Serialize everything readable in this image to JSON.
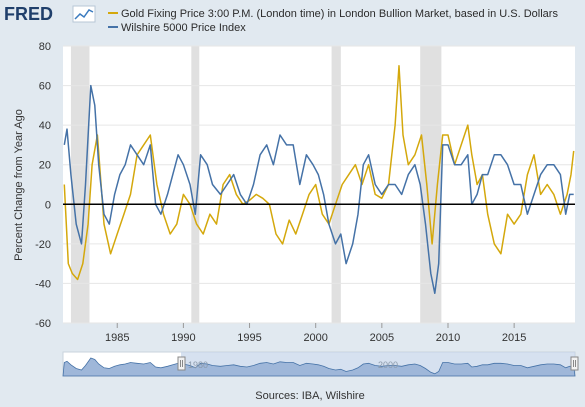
{
  "brand": {
    "logo_text": "FRED"
  },
  "chart_data": {
    "type": "line",
    "title": "",
    "xlabel": "",
    "ylabel": "Percent Change from Year Ago",
    "ylim": [
      -60,
      80
    ],
    "yticks": [
      -60,
      -40,
      -20,
      0,
      20,
      40,
      60,
      80
    ],
    "xlim": [
      1980.9,
      2019.6
    ],
    "xticks": [
      1985,
      1990,
      1995,
      2000,
      2005,
      2010,
      2015
    ],
    "grid": "horizontal",
    "legend_position": "top-left",
    "zero_line": true,
    "recessions": [
      [
        1981.5,
        1982.9
      ],
      [
        1990.6,
        1991.2
      ],
      [
        2001.2,
        2001.9
      ],
      [
        2007.9,
        2009.5
      ]
    ],
    "series": [
      {
        "name": "Gold Fixing Price 3:00 P.M. (London time) in London Bullion Market, based in U.S. Dollars",
        "color": "#d4a80c",
        "x": [
          1981.0,
          1981.3,
          1981.6,
          1982.0,
          1982.4,
          1982.8,
          1983.1,
          1983.5,
          1984.0,
          1984.5,
          1985.0,
          1985.5,
          1986.0,
          1986.5,
          1987.0,
          1987.5,
          1988.0,
          1988.5,
          1989.0,
          1989.5,
          1990.0,
          1990.5,
          1991.0,
          1991.5,
          1992.0,
          1992.5,
          1993.0,
          1993.5,
          1994.0,
          1994.5,
          1995.0,
          1995.5,
          1996.0,
          1996.5,
          1997.0,
          1997.5,
          1998.0,
          1998.5,
          1999.0,
          1999.5,
          2000.0,
          2000.5,
          2001.0,
          2001.5,
          2002.0,
          2002.5,
          2003.0,
          2003.5,
          2004.0,
          2004.5,
          2005.0,
          2005.5,
          2006.0,
          2006.3,
          2006.6,
          2007.0,
          2007.5,
          2008.0,
          2008.4,
          2008.8,
          2009.2,
          2009.6,
          2010.0,
          2010.5,
          2011.0,
          2011.5,
          2011.8,
          2012.2,
          2012.6,
          2013.0,
          2013.5,
          2014.0,
          2014.5,
          2015.0,
          2015.5,
          2016.0,
          2016.5,
          2017.0,
          2017.5,
          2018.0,
          2018.5,
          2019.0,
          2019.3,
          2019.5
        ],
        "values": [
          10,
          -30,
          -35,
          -38,
          -30,
          -10,
          20,
          35,
          -10,
          -25,
          -15,
          -5,
          5,
          25,
          30,
          35,
          10,
          -5,
          -15,
          -10,
          5,
          0,
          -10,
          -15,
          -5,
          -10,
          10,
          15,
          5,
          0,
          2,
          5,
          3,
          0,
          -15,
          -20,
          -8,
          -15,
          -5,
          5,
          10,
          -5,
          -10,
          0,
          10,
          15,
          20,
          10,
          20,
          5,
          3,
          10,
          40,
          70,
          35,
          20,
          25,
          35,
          10,
          -20,
          10,
          35,
          35,
          20,
          30,
          40,
          25,
          10,
          15,
          -5,
          -20,
          -25,
          -5,
          -10,
          -5,
          15,
          25,
          5,
          10,
          5,
          -5,
          5,
          15,
          27
        ]
      },
      {
        "name": "Wilshire 5000 Price Index",
        "color": "#4572a7",
        "x": [
          1981.0,
          1981.2,
          1981.5,
          1981.9,
          1982.3,
          1982.6,
          1983.0,
          1983.3,
          1983.6,
          1984.0,
          1984.4,
          1984.8,
          1985.2,
          1985.6,
          1986.0,
          1986.5,
          1987.0,
          1987.5,
          1987.9,
          1988.3,
          1988.8,
          1989.2,
          1989.6,
          1990.0,
          1990.5,
          1990.9,
          1991.3,
          1991.8,
          1992.2,
          1992.8,
          1993.3,
          1993.8,
          1994.3,
          1994.8,
          1995.3,
          1995.8,
          1996.3,
          1996.8,
          1997.3,
          1997.8,
          1998.3,
          1998.8,
          1999.3,
          1999.8,
          2000.2,
          2000.6,
          2001.0,
          2001.5,
          2001.9,
          2002.3,
          2002.8,
          2003.2,
          2003.6,
          2004.0,
          2004.5,
          2005.0,
          2005.5,
          2006.0,
          2006.5,
          2007.0,
          2007.5,
          2007.9,
          2008.3,
          2008.7,
          2009.0,
          2009.3,
          2009.6,
          2010.0,
          2010.5,
          2011.0,
          2011.5,
          2011.8,
          2012.2,
          2012.6,
          2013.0,
          2013.5,
          2014.0,
          2014.5,
          2015.0,
          2015.5,
          2016.0,
          2016.5,
          2017.0,
          2017.5,
          2018.0,
          2018.5,
          2018.9,
          2019.2,
          2019.5
        ],
        "values": [
          30,
          38,
          15,
          -10,
          -20,
          10,
          60,
          50,
          20,
          -5,
          -10,
          5,
          15,
          20,
          30,
          25,
          20,
          30,
          0,
          -5,
          5,
          15,
          25,
          20,
          10,
          -5,
          25,
          20,
          10,
          5,
          10,
          15,
          5,
          0,
          10,
          25,
          30,
          20,
          35,
          30,
          30,
          10,
          25,
          20,
          15,
          5,
          -10,
          -20,
          -15,
          -30,
          -20,
          -5,
          20,
          25,
          10,
          5,
          10,
          10,
          5,
          15,
          20,
          10,
          -10,
          -35,
          -45,
          -30,
          30,
          30,
          20,
          20,
          25,
          0,
          5,
          15,
          15,
          25,
          25,
          20,
          10,
          10,
          -5,
          5,
          15,
          20,
          20,
          15,
          -5,
          5,
          5
        ]
      }
    ]
  },
  "navigator": {
    "labels": [
      "1980",
      "2000"
    ]
  },
  "source": "Sources: IBA, Wilshire"
}
